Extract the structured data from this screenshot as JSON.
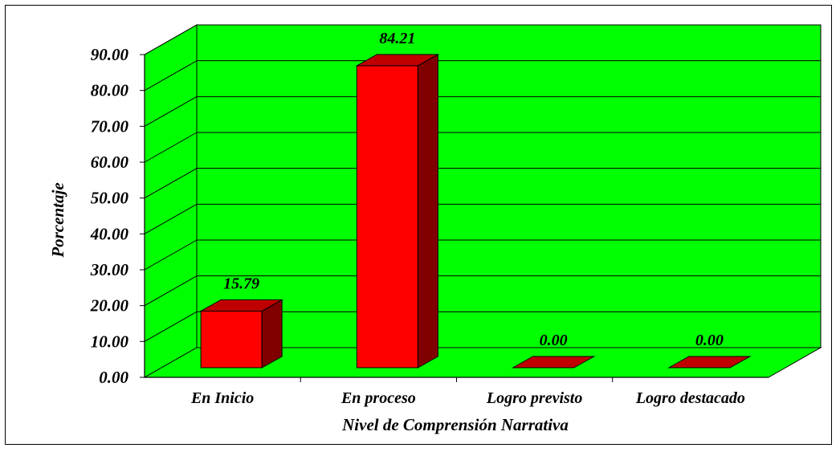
{
  "chart_data": {
    "type": "bar",
    "categories": [
      "En Inicio",
      "En proceso",
      "Logro previsto",
      "Logro destacado"
    ],
    "values": [
      15.79,
      84.21,
      0.0,
      0.0
    ],
    "value_labels": [
      "15.79",
      "84.21",
      "0.00",
      "0.00"
    ],
    "ylabel": "Porcentaje",
    "xlabel": "Nivel de Comprensión Narrativa",
    "ylim": [
      0,
      90
    ],
    "ytick_labels": [
      "0.00",
      "10.00",
      "20.00",
      "30.00",
      "40.00",
      "50.00",
      "60.00",
      "70.00",
      "80.00",
      "90.00"
    ],
    "grid": true,
    "legend": "none",
    "colors": {
      "plot_background": "#00ff00",
      "bar_front": "#ff0000",
      "bar_side": "#800000",
      "bar_top": "#c00000",
      "gridline": "#000000"
    }
  }
}
